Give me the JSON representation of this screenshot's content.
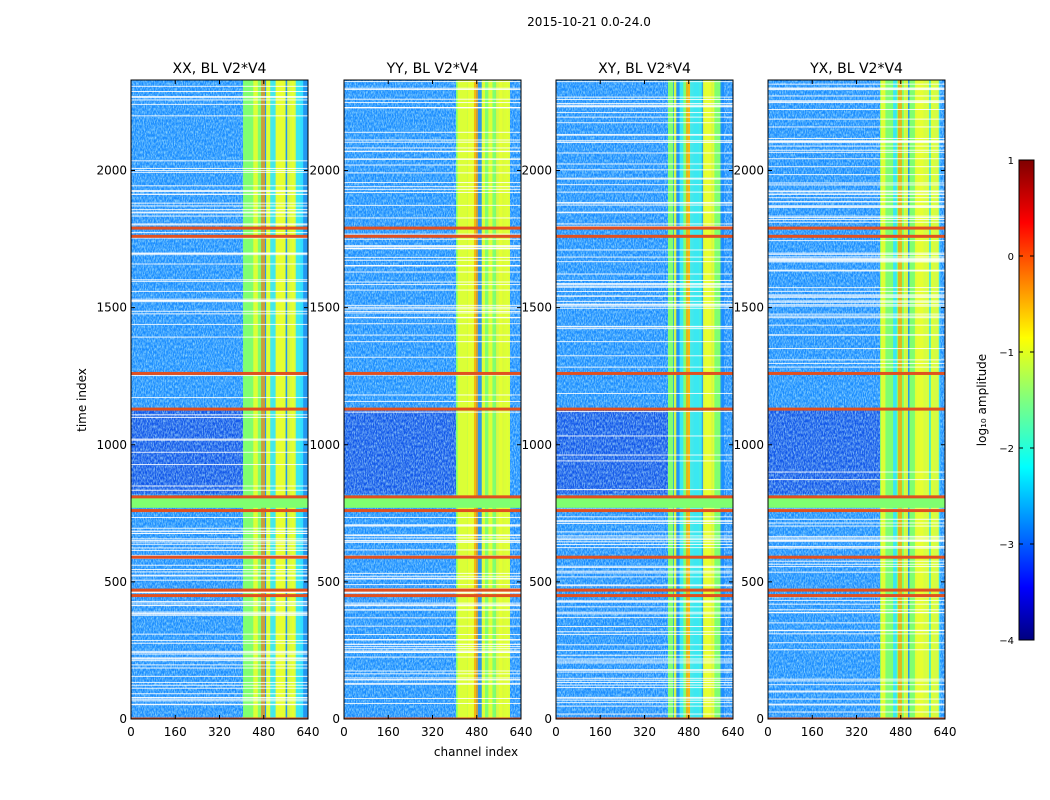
{
  "chart_data": {
    "type": "heatmap",
    "suptitle": "2015-10-21 0.0-24.0",
    "xlabel": "channel index",
    "ylabel": "time index",
    "xlim": [
      0,
      640
    ],
    "ylim": [
      0,
      2330
    ],
    "xticks": [
      "0",
      "160",
      "320",
      "480",
      "640"
    ],
    "xtick_values": [
      0,
      160,
      320,
      480,
      640
    ],
    "yticks": [
      "0",
      "500",
      "1000",
      "1500",
      "2000"
    ],
    "ytick_values": [
      0,
      500,
      1000,
      1500,
      2000
    ],
    "panels": [
      {
        "title": "XX, BL V2*V4",
        "rfi_start": 405,
        "rfi_end": 640
      },
      {
        "title": "YY, BL V2*V4",
        "rfi_start": 405,
        "rfi_end": 600
      },
      {
        "title": "XY, BL V2*V4",
        "rfi_start": 405,
        "rfi_end": 600
      },
      {
        "title": "YX, BL V2*V4",
        "rfi_start": 405,
        "rfi_end": 600
      }
    ],
    "colorbar": {
      "label": "log₁₀ amplitude",
      "range": [
        -4,
        1
      ],
      "ticks": [
        "1",
        "0",
        "−1",
        "−2",
        "−3",
        "−4"
      ],
      "tick_values": [
        1,
        0,
        -1,
        -2,
        -3,
        -4
      ],
      "colormap": "jet"
    },
    "flagged_rows": [
      0,
      450,
      470,
      590,
      760,
      810,
      1130,
      1260,
      1760,
      1790
    ],
    "flag_band": [
      770,
      810
    ],
    "background_log_amplitude": -2.8,
    "low_quiet_region": [
      820,
      1130
    ]
  },
  "colors": {
    "low": "#1040e0",
    "mid": "#1a8cff",
    "cyan": "#33e6ff",
    "rfi_green": "#7fff70",
    "rfi_yellow": "#e6ff30",
    "rfi_orange": "#ffa000",
    "flag": "#e05020"
  }
}
